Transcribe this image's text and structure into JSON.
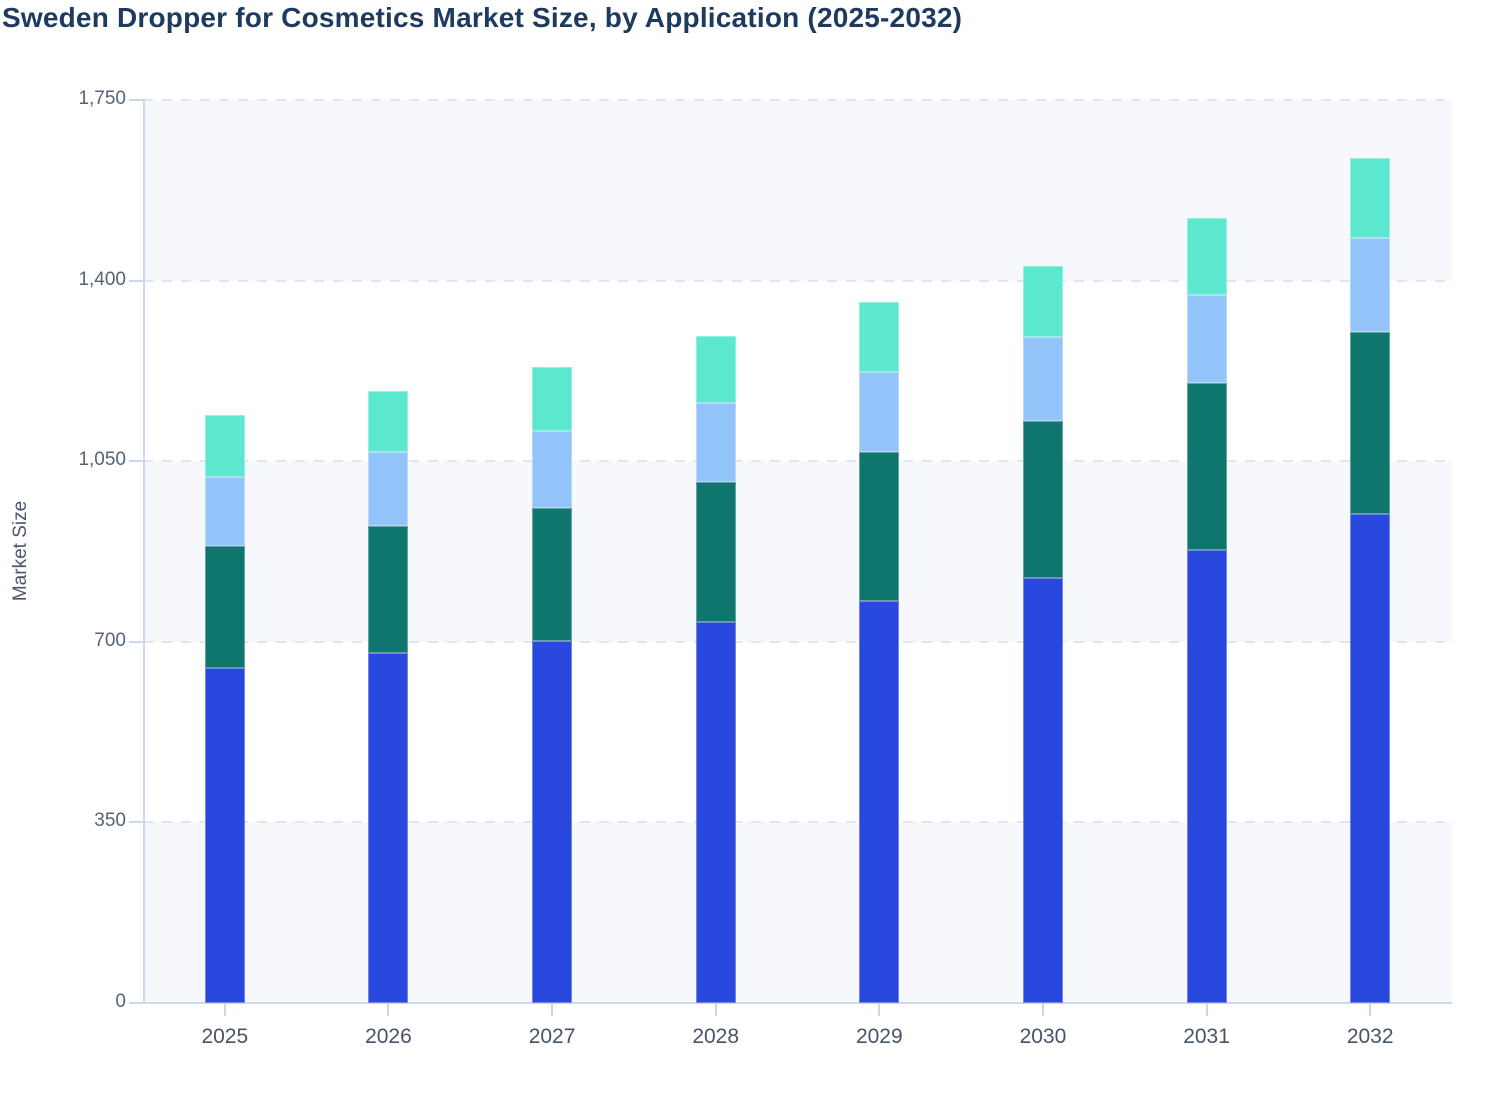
{
  "title": "Sweden Dropper for Cosmetics Market Size, by Application (2025-2032)",
  "chart_data": {
    "type": "bar",
    "stacked": true,
    "title": "Sweden Dropper for Cosmetics Market Size, by Application (2025-2032)",
    "xlabel": "",
    "ylabel": "Market Size",
    "ylim": [
      0,
      1750
    ],
    "yticks": [
      0,
      350,
      700,
      1050,
      1400,
      1750
    ],
    "ytick_labels": [
      "0",
      "350",
      "700",
      "1,050",
      "1,400",
      "1,750"
    ],
    "grid": "horizontal-dashed",
    "legend": "none",
    "plot_background": "alternating horizontal bands",
    "categories": [
      "2025",
      "2026",
      "2027",
      "2028",
      "2029",
      "2030",
      "2031",
      "2032"
    ],
    "series": [
      {
        "name": "segment-blue",
        "color": "#2847dc",
        "values": [
          650,
          678,
          702,
          738,
          780,
          824,
          878,
          948
        ]
      },
      {
        "name": "segment-teal",
        "color": "#0f766e",
        "values": [
          235,
          246,
          258,
          272,
          287,
          303,
          323,
          352
        ]
      },
      {
        "name": "segment-light-blue",
        "color": "#92c4fa",
        "values": [
          135,
          143,
          148,
          152,
          155,
          163,
          172,
          183
        ]
      },
      {
        "name": "segment-mint",
        "color": "#5ce8cf",
        "values": [
          120,
          119,
          124,
          130,
          136,
          138,
          148,
          154
        ]
      }
    ],
    "totals": [
      1140,
      1186,
      1232,
      1292,
      1358,
      1428,
      1521,
      1637
    ]
  },
  "colors": {
    "title_text": "#1e3a5e",
    "axis_line": "#ccd9ee",
    "gridline": "#e3e5eb",
    "band_fill": "#f7f8fb",
    "tick_text": "#47536a"
  }
}
